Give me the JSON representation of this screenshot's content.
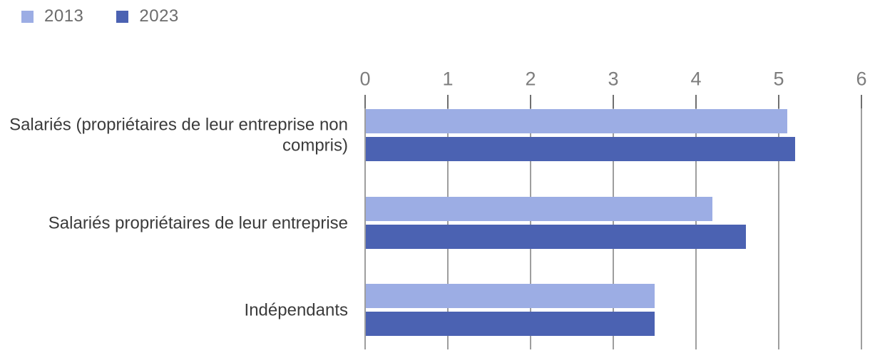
{
  "legend": {
    "items": [
      {
        "label": "2013",
        "color": "#9cade4"
      },
      {
        "label": "2023",
        "color": "#4b62b2"
      }
    ]
  },
  "colors": {
    "bar_2013": "#9cade4",
    "bar_2023": "#4b62b2",
    "gridline": "#9e9e9e",
    "tick": "#6f6f6f",
    "tick_label_text": "#7d7d7d",
    "category_text": "#3b3b3b",
    "legend_text": "#6c6c6c",
    "background": "#ffffff"
  },
  "chart_data": {
    "type": "bar",
    "orientation": "horizontal",
    "title": "",
    "xlabel": "",
    "ylabel": "",
    "categories": [
      "Salariés (propriétaires de leur entreprise non compris)",
      "Salariés propriétaires de leur entreprise",
      "Indépendants"
    ],
    "series": [
      {
        "name": "2013",
        "color": "#9cade4",
        "values": [
          5.1,
          4.2,
          3.5
        ]
      },
      {
        "name": "2023",
        "color": "#4b62b2",
        "values": [
          5.2,
          4.6,
          3.5
        ]
      }
    ],
    "xticks": [
      0,
      1,
      2,
      3,
      4,
      5,
      6
    ],
    "xlim": [
      0,
      6
    ],
    "grid": "vertical",
    "legend_position": "top-left"
  }
}
